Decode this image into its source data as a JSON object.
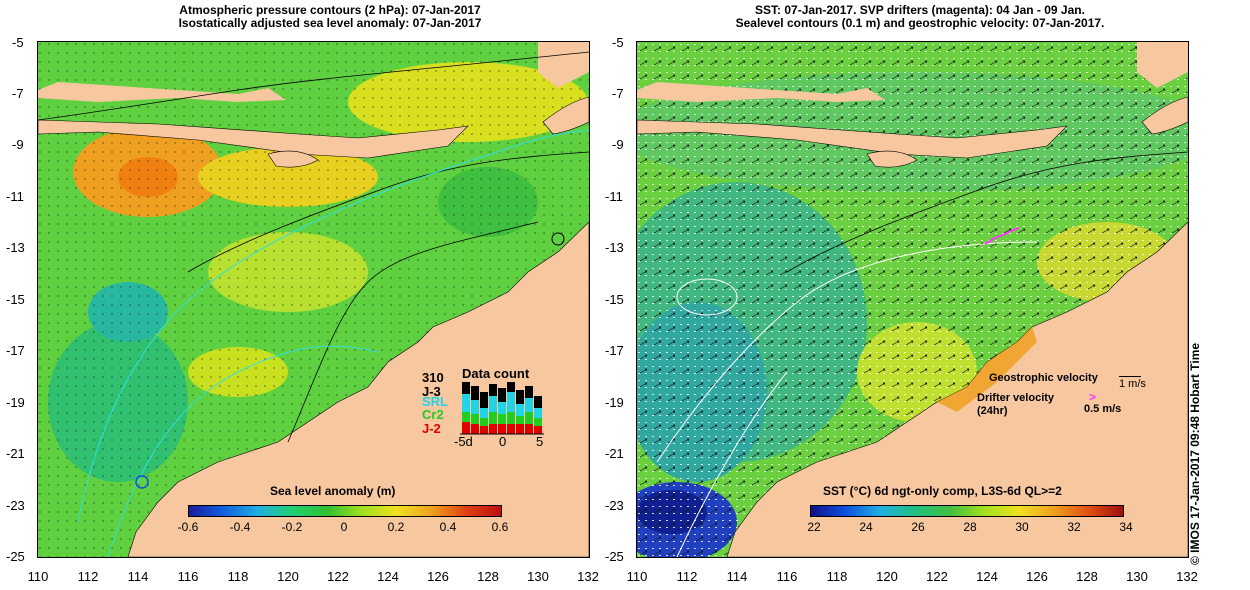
{
  "left_panel": {
    "title_line1": "Atmospheric pressure contours (2 hPa): 07-Jan-2017",
    "title_line2": "Isostatically adjusted sea level anomaly: 07-Jan-2017",
    "colorbar_title": "Sea level anomaly (m)",
    "colorbar_ticks": [
      "-0.6",
      "-0.4",
      "-0.2",
      "0",
      "0.2",
      "0.4",
      "0.6"
    ],
    "data_count": {
      "title": "Data count",
      "missions": [
        {
          "name": "310",
          "color": "#000000"
        },
        {
          "name": "J-3",
          "color": "#000000"
        },
        {
          "name": "SRL",
          "color": "#22d3e6"
        },
        {
          "name": "Cr2",
          "color": "#22cc22"
        },
        {
          "name": "J-2",
          "color": "#e00000"
        }
      ],
      "axis_labels": [
        "-5d",
        "0",
        "5"
      ]
    }
  },
  "right_panel": {
    "title_line1": "SST: 07-Jan-2017. SVP drifters (magenta): 04 Jan - 09 Jan.",
    "title_line2": "Sealevel contours (0.1 m) and geostrophic velocity: 07-Jan-2017.",
    "colorbar_title": "SST (°C) 6d ngt-only comp, L3S-6d QL>=2",
    "colorbar_ticks": [
      "22",
      "24",
      "26",
      "28",
      "30",
      "32",
      "34"
    ],
    "legend": {
      "geostrophic": "Geostrophic velocity",
      "geostrophic_scale": "1 m/s",
      "drifter": "Drifter velocity",
      "drifter_period": "(24hr)",
      "drifter_scale": "0.5 m/s",
      "drifter_color": "#ff33ff"
    }
  },
  "axes": {
    "y_ticks": [
      "-5",
      "-7",
      "-9",
      "-11",
      "-13",
      "-15",
      "-17",
      "-19",
      "-21",
      "-23",
      "-25"
    ],
    "x_ticks": [
      "110",
      "112",
      "114",
      "116",
      "118",
      "120",
      "122",
      "124",
      "126",
      "128",
      "130",
      "132"
    ]
  },
  "credit": "© IMOS 17-Jan-2017 09:48 Hobart Time",
  "colors": {
    "land": "#f7c8a0",
    "ocean_mid": "#40c040"
  }
}
